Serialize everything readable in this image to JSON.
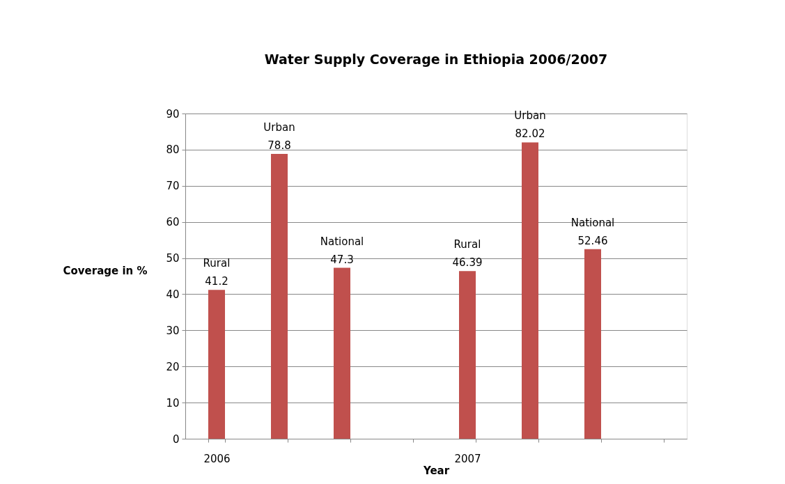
{
  "chart_data": {
    "type": "bar",
    "title": "Water Supply Coverage in Ethiopia 2006/2007",
    "xlabel": "Year",
    "ylabel": "Coverage in %",
    "categories": [
      "2006",
      null,
      null,
      null,
      "2007",
      null,
      null,
      null
    ],
    "values": [
      41.2,
      78.8,
      47.3,
      null,
      46.39,
      82.02,
      52.46,
      null
    ],
    "value_labels": [
      "Rural\n41.2",
      "Urban\n78.8",
      "National\n47.3",
      null,
      "Rural\n46.39",
      "Urban\n82.02",
      "National\n52.46",
      null
    ],
    "color": "#c0504d",
    "ylim": [
      0,
      90
    ],
    "yticks": [
      0,
      10,
      20,
      30,
      40,
      50,
      60,
      70,
      80,
      90
    ],
    "grid": "y"
  }
}
